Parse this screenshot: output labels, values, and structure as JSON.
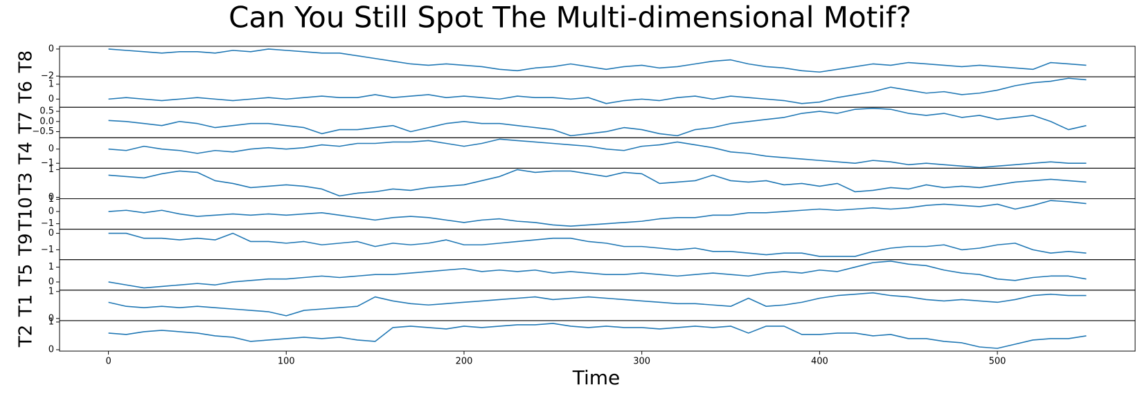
{
  "chart_data": {
    "type": "line",
    "title": "Can You Still Spot The Multi-dimensional Motif?",
    "xlabel": "Time",
    "xlim": [
      -27.5,
      577.5
    ],
    "xticks": [
      0,
      100,
      200,
      300,
      400,
      500
    ],
    "x": [
      0,
      10,
      20,
      30,
      40,
      50,
      60,
      70,
      80,
      90,
      100,
      110,
      120,
      130,
      140,
      150,
      160,
      170,
      180,
      190,
      200,
      210,
      220,
      230,
      240,
      250,
      260,
      270,
      280,
      290,
      300,
      310,
      320,
      330,
      340,
      350,
      360,
      370,
      380,
      390,
      400,
      410,
      420,
      430,
      440,
      450,
      460,
      470,
      480,
      490,
      500,
      510,
      520,
      530,
      540,
      550
    ],
    "series": [
      {
        "name": "T8",
        "color": "#1f77b4",
        "ylim": [
          -2.05,
          0.2
        ],
        "yticks": [
          {
            "value": -2,
            "label": "−2"
          },
          0
        ],
        "values": [
          0.0,
          -0.1,
          -0.2,
          -0.3,
          -0.2,
          -0.2,
          -0.3,
          -0.1,
          -0.2,
          0.0,
          -0.1,
          -0.2,
          -0.3,
          -0.3,
          -0.5,
          -0.7,
          -0.9,
          -1.1,
          -1.2,
          -1.1,
          -1.2,
          -1.3,
          -1.5,
          -1.6,
          -1.4,
          -1.3,
          -1.1,
          -1.3,
          -1.5,
          -1.3,
          -1.2,
          -1.4,
          -1.3,
          -1.1,
          -0.9,
          -0.8,
          -1.1,
          -1.3,
          -1.4,
          -1.6,
          -1.7,
          -1.5,
          -1.3,
          -1.1,
          -1.2,
          -1.0,
          -1.1,
          -1.2,
          -1.3,
          -1.2,
          -1.3,
          -1.4,
          -1.5,
          -1.0,
          -1.1,
          -1.2
        ]
      },
      {
        "name": "T6",
        "color": "#1f77b4",
        "ylim": [
          -0.55,
          1.5
        ],
        "yticks": [
          0,
          1
        ],
        "values": [
          0.0,
          0.1,
          0.0,
          -0.1,
          0.0,
          0.1,
          0.0,
          -0.1,
          0.0,
          0.1,
          0.0,
          0.1,
          0.2,
          0.1,
          0.1,
          0.3,
          0.1,
          0.2,
          0.3,
          0.1,
          0.2,
          0.1,
          0.0,
          0.2,
          0.1,
          0.1,
          0.0,
          0.1,
          -0.3,
          -0.1,
          0.0,
          -0.1,
          0.1,
          0.2,
          0.0,
          0.2,
          0.1,
          0.0,
          -0.1,
          -0.3,
          -0.2,
          0.1,
          0.3,
          0.5,
          0.8,
          0.6,
          0.4,
          0.5,
          0.3,
          0.4,
          0.6,
          0.9,
          1.1,
          1.2,
          1.4,
          1.3
        ]
      },
      {
        "name": "T7",
        "color": "#1f77b4",
        "ylim": [
          -0.8,
          0.7
        ],
        "yticks": [
          {
            "value": -0.5,
            "label": "−0.5"
          },
          {
            "value": 0,
            "label": "0.0"
          },
          0.5
        ],
        "values": [
          0.05,
          0.0,
          -0.1,
          -0.2,
          0.0,
          -0.1,
          -0.3,
          -0.2,
          -0.1,
          -0.1,
          -0.2,
          -0.3,
          -0.6,
          -0.4,
          -0.4,
          -0.3,
          -0.2,
          -0.5,
          -0.3,
          -0.1,
          0.0,
          -0.1,
          -0.1,
          -0.2,
          -0.3,
          -0.4,
          -0.7,
          -0.6,
          -0.5,
          -0.3,
          -0.4,
          -0.6,
          -0.7,
          -0.4,
          -0.3,
          -0.1,
          0.0,
          0.1,
          0.2,
          0.4,
          0.5,
          0.4,
          0.6,
          0.65,
          0.6,
          0.4,
          0.3,
          0.4,
          0.2,
          0.3,
          0.1,
          0.2,
          0.3,
          0.0,
          -0.4,
          -0.2
        ]
      },
      {
        "name": "T4",
        "color": "#1f77b4",
        "ylim": [
          -1.35,
          0.8
        ],
        "yticks": [
          {
            "value": -1,
            "label": "−1"
          },
          0
        ],
        "values": [
          0.0,
          -0.1,
          0.2,
          0.0,
          -0.1,
          -0.3,
          -0.1,
          -0.2,
          0.0,
          0.1,
          0.0,
          0.1,
          0.3,
          0.2,
          0.4,
          0.4,
          0.5,
          0.5,
          0.6,
          0.4,
          0.2,
          0.4,
          0.7,
          0.6,
          0.5,
          0.4,
          0.3,
          0.2,
          0.0,
          -0.1,
          0.2,
          0.3,
          0.5,
          0.3,
          0.1,
          -0.2,
          -0.3,
          -0.5,
          -0.6,
          -0.7,
          -0.8,
          -0.9,
          -1.0,
          -0.8,
          -0.9,
          -1.1,
          -1.0,
          -1.1,
          -1.2,
          -1.3,
          -1.2,
          -1.1,
          -1.0,
          -0.9,
          -1.0,
          -1.0
        ]
      },
      {
        "name": "T3",
        "color": "#1f77b4",
        "ylim": [
          -0.05,
          1.05
        ],
        "yticks": [
          0,
          1
        ],
        "values": [
          0.8,
          0.75,
          0.7,
          0.85,
          0.95,
          0.9,
          0.6,
          0.5,
          0.35,
          0.4,
          0.45,
          0.4,
          0.3,
          0.05,
          0.15,
          0.2,
          0.3,
          0.25,
          0.35,
          0.4,
          0.45,
          0.6,
          0.75,
          1.0,
          0.9,
          0.95,
          0.95,
          0.85,
          0.75,
          0.9,
          0.85,
          0.5,
          0.55,
          0.6,
          0.8,
          0.6,
          0.55,
          0.6,
          0.45,
          0.5,
          0.4,
          0.5,
          0.2,
          0.25,
          0.35,
          0.3,
          0.45,
          0.35,
          0.4,
          0.35,
          0.45,
          0.55,
          0.6,
          0.65,
          0.6,
          0.55
        ]
      },
      {
        "name": "T10",
        "color": "#1f77b4",
        "ylim": [
          -1.45,
          1.05
        ],
        "yticks": [
          {
            "value": -1,
            "label": "−1"
          },
          0,
          1
        ],
        "values": [
          0.0,
          0.1,
          -0.1,
          0.1,
          -0.2,
          -0.4,
          -0.3,
          -0.2,
          -0.3,
          -0.2,
          -0.3,
          -0.2,
          -0.1,
          -0.3,
          -0.5,
          -0.7,
          -0.5,
          -0.4,
          -0.5,
          -0.7,
          -0.9,
          -0.7,
          -0.6,
          -0.8,
          -0.9,
          -1.1,
          -1.2,
          -1.1,
          -1.0,
          -0.9,
          -0.8,
          -0.6,
          -0.5,
          -0.5,
          -0.3,
          -0.3,
          -0.1,
          -0.1,
          0.0,
          0.1,
          0.2,
          0.1,
          0.2,
          0.3,
          0.2,
          0.3,
          0.5,
          0.6,
          0.5,
          0.4,
          0.6,
          0.2,
          0.5,
          0.9,
          0.8,
          0.65
        ]
      },
      {
        "name": "T9",
        "color": "#1f77b4",
        "ylim": [
          -1.6,
          0.25
        ],
        "yticks": [
          {
            "value": -1,
            "label": "−1"
          },
          0
        ],
        "values": [
          0.0,
          0.0,
          -0.3,
          -0.3,
          -0.4,
          -0.3,
          -0.4,
          0.0,
          -0.5,
          -0.5,
          -0.6,
          -0.5,
          -0.7,
          -0.6,
          -0.5,
          -0.8,
          -0.6,
          -0.7,
          -0.6,
          -0.4,
          -0.7,
          -0.7,
          -0.6,
          -0.5,
          -0.4,
          -0.3,
          -0.3,
          -0.5,
          -0.6,
          -0.8,
          -0.8,
          -0.9,
          -1.0,
          -0.9,
          -1.1,
          -1.1,
          -1.2,
          -1.3,
          -1.2,
          -1.2,
          -1.4,
          -1.4,
          -1.4,
          -1.1,
          -0.9,
          -0.8,
          -0.8,
          -0.7,
          -1.0,
          -0.9,
          -0.7,
          -0.6,
          -1.0,
          -1.2,
          -1.1,
          -1.2
        ]
      },
      {
        "name": "T5",
        "color": "#1f77b4",
        "ylim": [
          -0.55,
          1.5
        ],
        "yticks": [
          0,
          1
        ],
        "values": [
          0.0,
          -0.2,
          -0.4,
          -0.3,
          -0.2,
          -0.1,
          -0.2,
          0.0,
          0.1,
          0.2,
          0.2,
          0.3,
          0.4,
          0.3,
          0.4,
          0.5,
          0.5,
          0.6,
          0.7,
          0.8,
          0.9,
          0.7,
          0.8,
          0.7,
          0.8,
          0.6,
          0.7,
          0.6,
          0.5,
          0.5,
          0.6,
          0.5,
          0.4,
          0.5,
          0.6,
          0.5,
          0.4,
          0.6,
          0.7,
          0.6,
          0.8,
          0.7,
          1.0,
          1.3,
          1.4,
          1.2,
          1.1,
          0.8,
          0.6,
          0.5,
          0.2,
          0.1,
          0.3,
          0.4,
          0.4,
          0.2
        ]
      },
      {
        "name": "T1",
        "color": "#1f77b4",
        "ylim": [
          -0.08,
          1.05
        ],
        "yticks": [
          0,
          1
        ],
        "values": [
          0.6,
          0.45,
          0.4,
          0.45,
          0.4,
          0.45,
          0.4,
          0.35,
          0.3,
          0.25,
          0.1,
          0.3,
          0.35,
          0.4,
          0.45,
          0.8,
          0.65,
          0.55,
          0.5,
          0.55,
          0.6,
          0.65,
          0.7,
          0.75,
          0.8,
          0.7,
          0.75,
          0.8,
          0.75,
          0.7,
          0.65,
          0.6,
          0.55,
          0.55,
          0.5,
          0.45,
          0.75,
          0.45,
          0.5,
          0.6,
          0.75,
          0.85,
          0.9,
          0.95,
          0.85,
          0.8,
          0.7,
          0.65,
          0.7,
          0.65,
          0.6,
          0.7,
          0.85,
          0.9,
          0.85,
          0.85
        ]
      },
      {
        "name": "T2",
        "color": "#1f77b4",
        "ylim": [
          -0.05,
          1.05
        ],
        "yticks": [
          0,
          1
        ],
        "values": [
          0.6,
          0.55,
          0.65,
          0.7,
          0.65,
          0.6,
          0.5,
          0.45,
          0.3,
          0.35,
          0.4,
          0.45,
          0.4,
          0.45,
          0.35,
          0.3,
          0.8,
          0.85,
          0.8,
          0.75,
          0.85,
          0.8,
          0.85,
          0.9,
          0.9,
          0.95,
          0.85,
          0.8,
          0.85,
          0.8,
          0.8,
          0.75,
          0.8,
          0.85,
          0.8,
          0.85,
          0.6,
          0.85,
          0.85,
          0.55,
          0.55,
          0.6,
          0.6,
          0.5,
          0.55,
          0.4,
          0.4,
          0.3,
          0.25,
          0.1,
          0.05,
          0.2,
          0.35,
          0.4,
          0.4,
          0.5
        ]
      }
    ]
  }
}
